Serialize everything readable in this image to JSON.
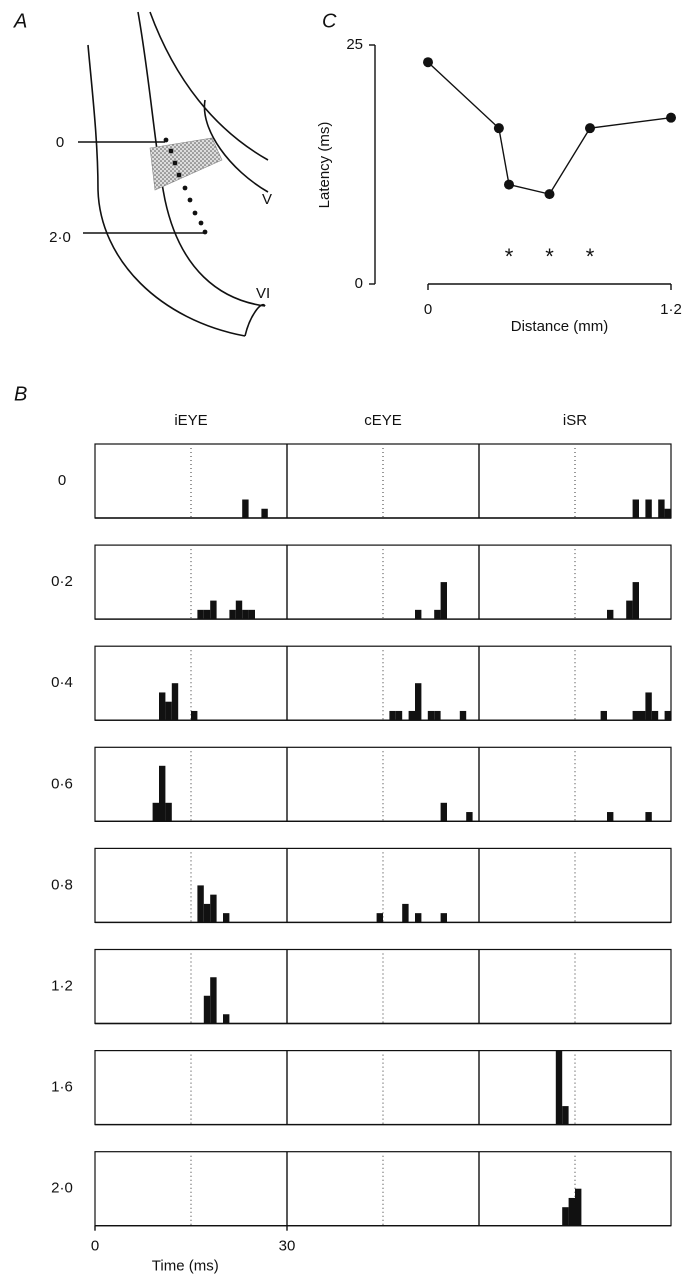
{
  "panel_a": {
    "label": "A",
    "depth_labels": [
      "0",
      "2·0"
    ],
    "regions": [
      "V",
      "VI"
    ]
  },
  "chart_data": [
    {
      "type": "line",
      "panel_label": "C",
      "xlabel": "Distance (mm)",
      "ylabel": "Latency (ms)",
      "x": [
        0,
        0.35,
        0.4,
        0.6,
        0.8,
        1.2
      ],
      "values": [
        23.2,
        16.3,
        10.4,
        9.4,
        16.3,
        17.4
      ],
      "color": "#111111",
      "xlim": [
        0,
        1.2
      ],
      "xticks": [
        0,
        {
          "value": 1.2,
          "label": "1·2"
        }
      ],
      "ylim": [
        0,
        25
      ],
      "yticks": [
        0,
        25
      ],
      "annotations": [
        {
          "text": "*",
          "x": 0.4,
          "y": 2.7
        },
        {
          "text": "*",
          "x": 0.6,
          "y": 2.7
        },
        {
          "text": "*",
          "x": 0.8,
          "y": 2.7
        }
      ]
    },
    {
      "type": "histogram",
      "panel_label": "B",
      "xlabel": "Time (ms)",
      "columns": [
        "iEYE",
        "cEYE",
        "iSR"
      ],
      "rows": [
        "0",
        "0·2",
        "0·4",
        "0·6",
        "0·8",
        "1·2",
        "1·6",
        "2·0"
      ],
      "xlim": [
        0,
        30
      ],
      "xticks": [
        0,
        30
      ],
      "ylim": [
        0,
        8
      ],
      "bin_width": 1,
      "marker_time": 15,
      "color": "#111111",
      "panels": [
        [
          {
            "x": [
              23,
              26
            ],
            "values": [
              2,
              1
            ]
          },
          {
            "x": [],
            "values": []
          },
          {
            "x": [
              24,
              26,
              28,
              29
            ],
            "values": [
              2,
              2,
              2,
              1
            ]
          }
        ],
        [
          {
            "x": [
              16,
              17,
              18,
              21,
              22,
              23,
              24
            ],
            "values": [
              1,
              1,
              2,
              1,
              2,
              1,
              1
            ]
          },
          {
            "x": [
              20,
              23,
              24
            ],
            "values": [
              1,
              1,
              4
            ]
          },
          {
            "x": [
              20,
              23,
              24
            ],
            "values": [
              1,
              2,
              4
            ]
          }
        ],
        [
          {
            "x": [
              10,
              11,
              12,
              15
            ],
            "values": [
              3,
              2,
              4,
              1
            ]
          },
          {
            "x": [
              16,
              17,
              19,
              20,
              22,
              23,
              27
            ],
            "values": [
              1,
              1,
              1,
              4,
              1,
              1,
              1
            ]
          },
          {
            "x": [
              19,
              24,
              25,
              26,
              27,
              29
            ],
            "values": [
              1,
              1,
              1,
              3,
              1,
              1
            ]
          }
        ],
        [
          {
            "x": [
              9,
              10,
              11
            ],
            "values": [
              2,
              6,
              2
            ]
          },
          {
            "x": [
              24,
              28
            ],
            "values": [
              2,
              1
            ]
          },
          {
            "x": [
              20,
              26
            ],
            "values": [
              1,
              1
            ]
          }
        ],
        [
          {
            "x": [
              16,
              17,
              18,
              20
            ],
            "values": [
              4,
              2,
              3,
              1
            ]
          },
          {
            "x": [
              14,
              18,
              20,
              24
            ],
            "values": [
              1,
              2,
              1,
              1
            ]
          },
          {
            "x": [],
            "values": []
          }
        ],
        [
          {
            "x": [
              17,
              18,
              20
            ],
            "values": [
              3,
              5,
              1
            ]
          },
          {
            "x": [],
            "values": []
          },
          {
            "x": [],
            "values": []
          }
        ],
        [
          {
            "x": [],
            "values": []
          },
          {
            "x": [],
            "values": []
          },
          {
            "x": [
              12,
              13
            ],
            "values": [
              8,
              2
            ]
          }
        ],
        [
          {
            "x": [],
            "values": []
          },
          {
            "x": [],
            "values": []
          },
          {
            "x": [
              13,
              14,
              15
            ],
            "values": [
              2,
              3,
              4
            ]
          }
        ]
      ]
    }
  ]
}
